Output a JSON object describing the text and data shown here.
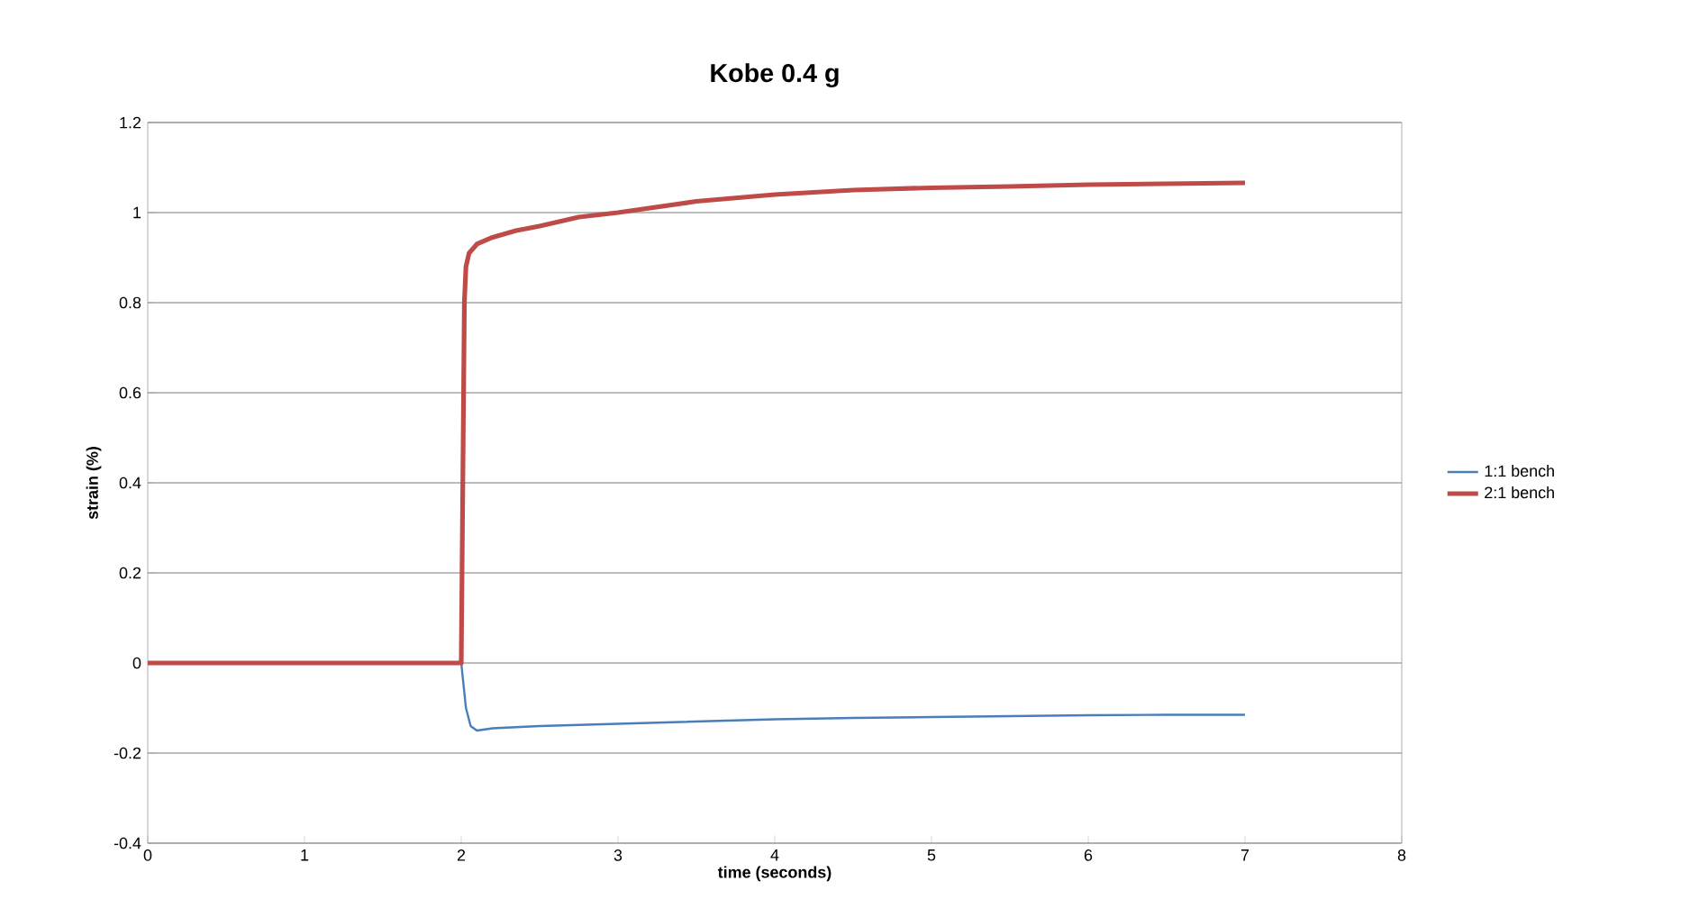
{
  "chart_data": {
    "type": "line",
    "title": "Kobe 0.4 g",
    "xlabel": "time (seconds)",
    "ylabel": "strain (%)",
    "xlim": [
      0,
      8
    ],
    "xticks": [
      0,
      1,
      2,
      3,
      4,
      5,
      6,
      7,
      8
    ],
    "ylim": [
      -0.4,
      1.2
    ],
    "yticks": [
      -0.4,
      -0.2,
      0,
      0.2,
      0.4,
      0.6,
      0.8,
      1,
      1.2
    ],
    "grid": "y",
    "legend": "right",
    "marker": "none",
    "series": [
      {
        "name": "1:1 bench",
        "color": "#4a7ebb",
        "x": [
          2.0,
          2.03,
          2.06,
          2.1,
          2.2,
          2.5,
          3,
          3.5,
          4,
          4.5,
          5,
          5.5,
          6,
          6.5,
          7
        ],
        "values": [
          0,
          -0.1,
          -0.14,
          -0.15,
          -0.145,
          -0.14,
          -0.135,
          -0.13,
          -0.125,
          -0.122,
          -0.12,
          -0.118,
          -0.116,
          -0.115,
          -0.115
        ]
      },
      {
        "name": "2:1 bench",
        "color": "#be4b48",
        "x": [
          0,
          0.5,
          1,
          1.5,
          2.0,
          2.01,
          2.02,
          2.03,
          2.05,
          2.1,
          2.2,
          2.35,
          2.5,
          2.75,
          3,
          3.5,
          4,
          4.5,
          5,
          5.5,
          6,
          6.5,
          7
        ],
        "values": [
          0,
          0,
          0,
          0,
          0,
          0.4,
          0.8,
          0.88,
          0.91,
          0.93,
          0.945,
          0.96,
          0.97,
          0.99,
          1.0,
          1.025,
          1.04,
          1.05,
          1.055,
          1.058,
          1.062,
          1.064,
          1.066
        ]
      }
    ]
  }
}
